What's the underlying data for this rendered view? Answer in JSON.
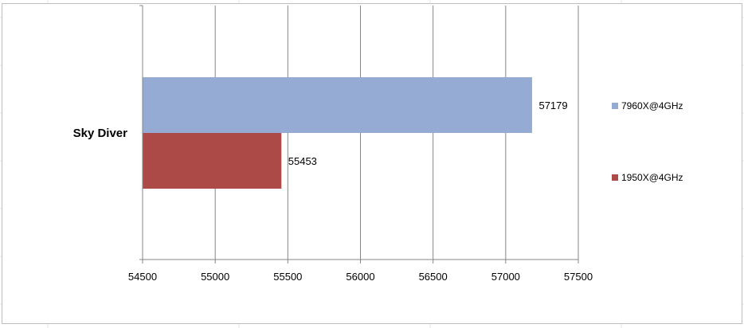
{
  "chart_data": {
    "type": "bar",
    "orientation": "horizontal",
    "title": "",
    "xlabel": "",
    "ylabel": "",
    "categories": [
      "Sky Diver"
    ],
    "series": [
      {
        "name": "7960X@4GHz",
        "values": [
          57179
        ],
        "color": "#95abd4"
      },
      {
        "name": "1950X@4GHz",
        "values": [
          55453
        ],
        "color": "#ab4a47"
      }
    ],
    "xlim": [
      54500,
      57500
    ],
    "xticks": [
      54500,
      55000,
      55500,
      56000,
      56500,
      57000,
      57500
    ],
    "grid": true,
    "data_labels": true,
    "legend_position": "right"
  }
}
